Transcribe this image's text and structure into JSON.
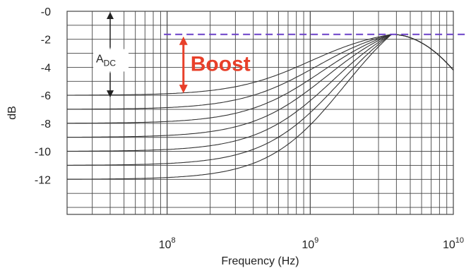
{
  "chart_data": {
    "type": "line",
    "title": "",
    "xlabel": "Frequency (Hz)",
    "ylabel": "dB",
    "x_scale": "log",
    "xlim": [
      20000000,
      10000000000
    ],
    "ylim": [
      -14.5,
      0
    ],
    "grid": true,
    "y_ticks": [
      {
        "value": 0,
        "label": "-0"
      },
      {
        "value": -2,
        "label": "-2"
      },
      {
        "value": -4,
        "label": "-4"
      },
      {
        "value": -6,
        "label": "-6"
      },
      {
        "value": -8,
        "label": "-8"
      },
      {
        "value": -10,
        "label": "-10"
      },
      {
        "value": -12,
        "label": "-12"
      }
    ],
    "x_ticks": [
      {
        "value": 100000000,
        "base": "10",
        "exp": "8"
      },
      {
        "value": 1000000000,
        "base": "10",
        "exp": "9"
      },
      {
        "value": 10000000000,
        "base": "10",
        "exp": "10"
      }
    ],
    "peak": {
      "freq": 3700000000,
      "db": -1.65
    },
    "high_end": {
      "freq": 10000000000,
      "db": -4.2
    },
    "series": [
      {
        "dc_db": -6,
        "corner_hz": 1000000000
      },
      {
        "dc_db": -7,
        "corner_hz": 1100000000
      },
      {
        "dc_db": -8,
        "corner_hz": 1200000000
      },
      {
        "dc_db": -9,
        "corner_hz": 1300000000
      },
      {
        "dc_db": -10,
        "corner_hz": 1450000000
      },
      {
        "dc_db": -11,
        "corner_hz": 1600000000
      },
      {
        "dc_db": -12,
        "corner_hz": 1750000000
      }
    ],
    "reference_line": {
      "db": -1.65,
      "color": "#6a3fc8",
      "style": "dashed"
    },
    "annotations": {
      "adc": {
        "main": "A",
        "sub": "DC",
        "top_db": 0,
        "bottom_db": -6,
        "freq": 40000000
      },
      "boost": {
        "text": "Boost",
        "color": "#e8402a",
        "top_db": -1.65,
        "bottom_db": -6,
        "freq": 130000000
      }
    }
  }
}
